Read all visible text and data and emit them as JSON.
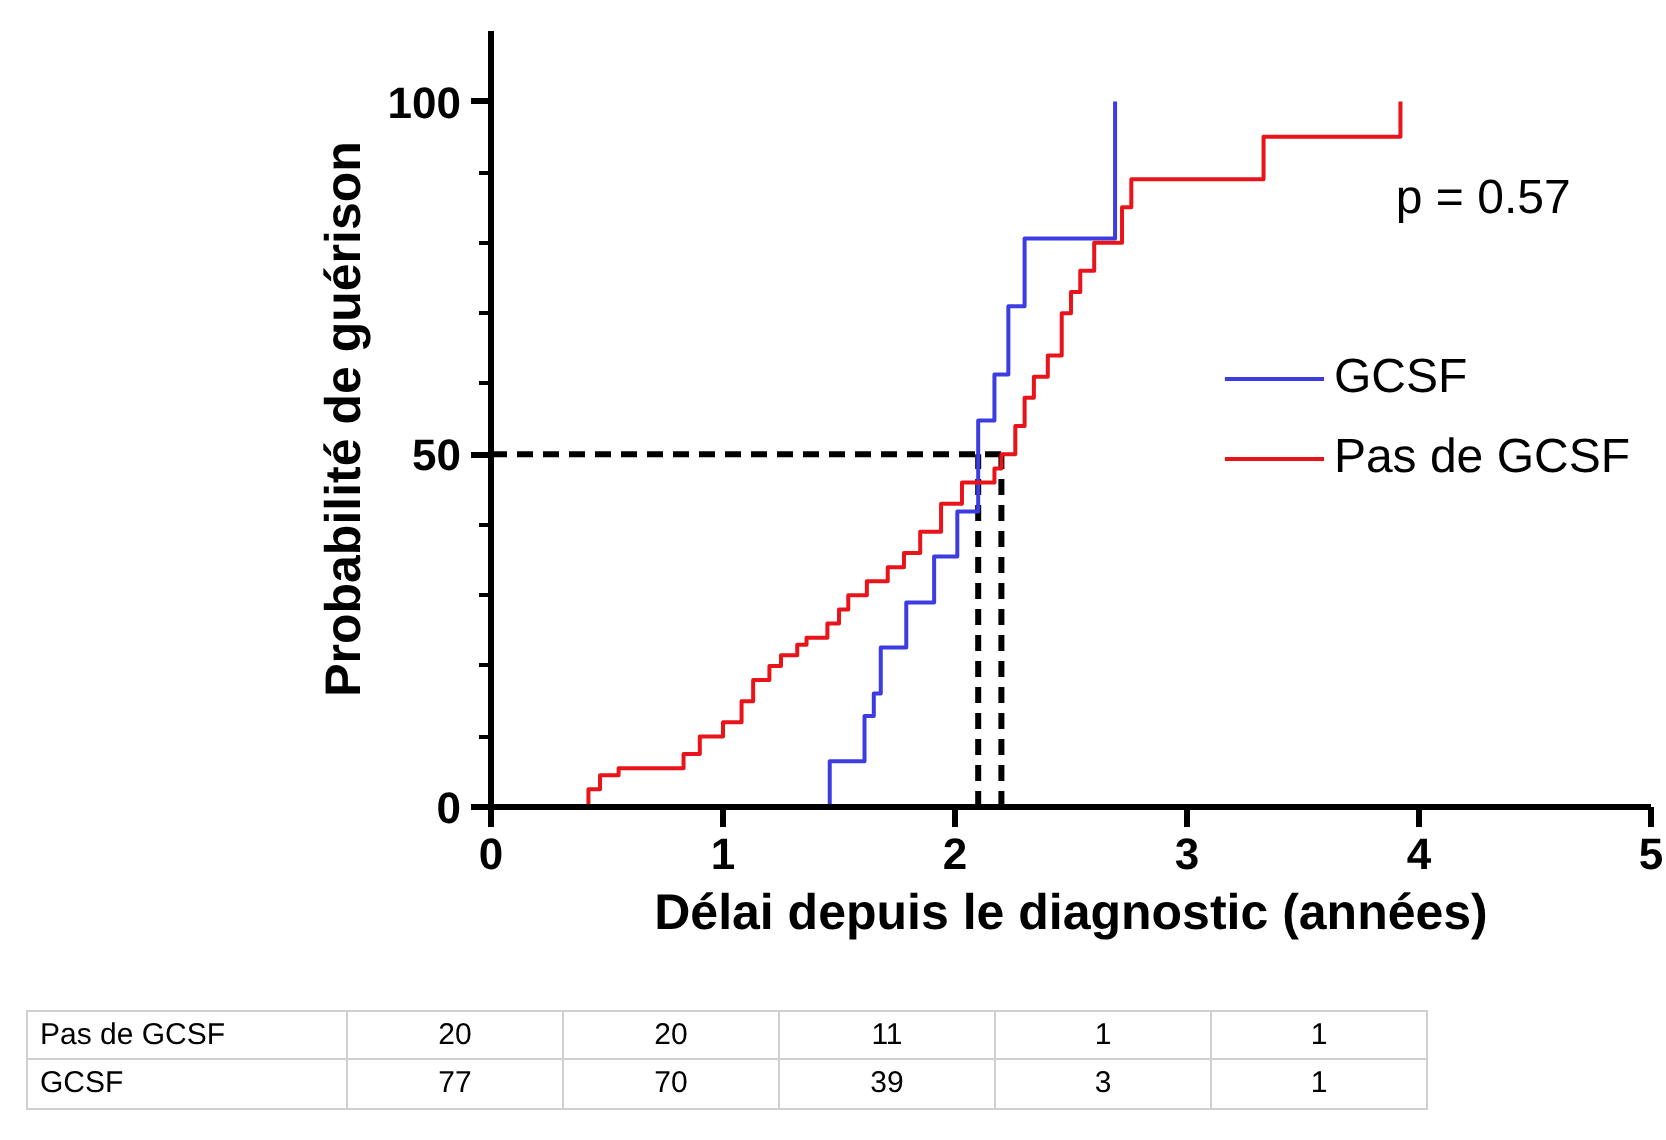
{
  "chart_data": {
    "type": "step",
    "xlabel": "Délai depuis le diagnostic (années)",
    "ylabel": "Probabilité de guérison",
    "xlim": [
      0,
      5
    ],
    "xticks": [
      0,
      1,
      2,
      3,
      4,
      5
    ],
    "ylim": [
      0,
      110
    ],
    "yticks": [
      0,
      {
        "value": 10,
        "label": null
      },
      {
        "value": 20,
        "label": null
      },
      {
        "value": 30,
        "label": null
      },
      {
        "value": 40,
        "label": null
      },
      50,
      {
        "value": 60,
        "label": null
      },
      {
        "value": 70,
        "label": null
      },
      {
        "value": 80,
        "label": null
      },
      {
        "value": 90,
        "label": null
      },
      100
    ],
    "grid": false,
    "legend": "right",
    "line_style": "solid",
    "series": [
      {
        "name": "GCSF",
        "color": "#3c3ce0",
        "x": [
          0,
          1.46,
          1.61,
          1.65,
          1.68,
          1.79,
          1.91,
          2.01,
          2.1,
          2.17,
          2.23,
          2.3,
          2.69
        ],
        "values": [
          0,
          6.5,
          12.9,
          16.1,
          22.6,
          29,
          35.5,
          41.9,
          54.8,
          61.3,
          71,
          80.6,
          100
        ]
      },
      {
        "name": "Pas de GCSF",
        "color": "#e8141a",
        "x": [
          0,
          0.42,
          0.47,
          0.55,
          0.83,
          0.9,
          1.0,
          1.08,
          1.13,
          1.2,
          1.25,
          1.32,
          1.36,
          1.45,
          1.5,
          1.54,
          1.62,
          1.71,
          1.78,
          1.85,
          1.94,
          2.03,
          2.17,
          2.2,
          2.26,
          2.3,
          2.34,
          2.4,
          2.46,
          2.5,
          2.54,
          2.6,
          2.72,
          2.76,
          3.33,
          3.92
        ],
        "values": [
          0,
          2.5,
          4.5,
          5.5,
          7.5,
          10,
          12,
          15,
          18,
          20,
          21.5,
          23,
          24,
          26,
          28,
          30,
          32,
          34,
          36,
          39,
          43,
          46,
          48,
          50,
          54,
          58,
          61,
          64,
          70,
          73,
          76,
          80,
          85,
          89,
          95,
          100
        ]
      }
    ],
    "ref_lines": [
      {
        "axis": "y",
        "value": 50,
        "line_style": "dashed",
        "color": "#000000"
      },
      {
        "axis": "x",
        "value": 2.1,
        "line_style": "dashed",
        "color": "#000000"
      },
      {
        "axis": "x",
        "value": 2.2,
        "line_style": "dashed",
        "color": "#000000"
      }
    ],
    "annotations": [
      "p = 0.57",
      "Pas de GCSF",
      "20",
      "20",
      "11",
      "1",
      "1",
      "GCSF",
      "77",
      "70",
      "39",
      "3",
      "1"
    ]
  }
}
